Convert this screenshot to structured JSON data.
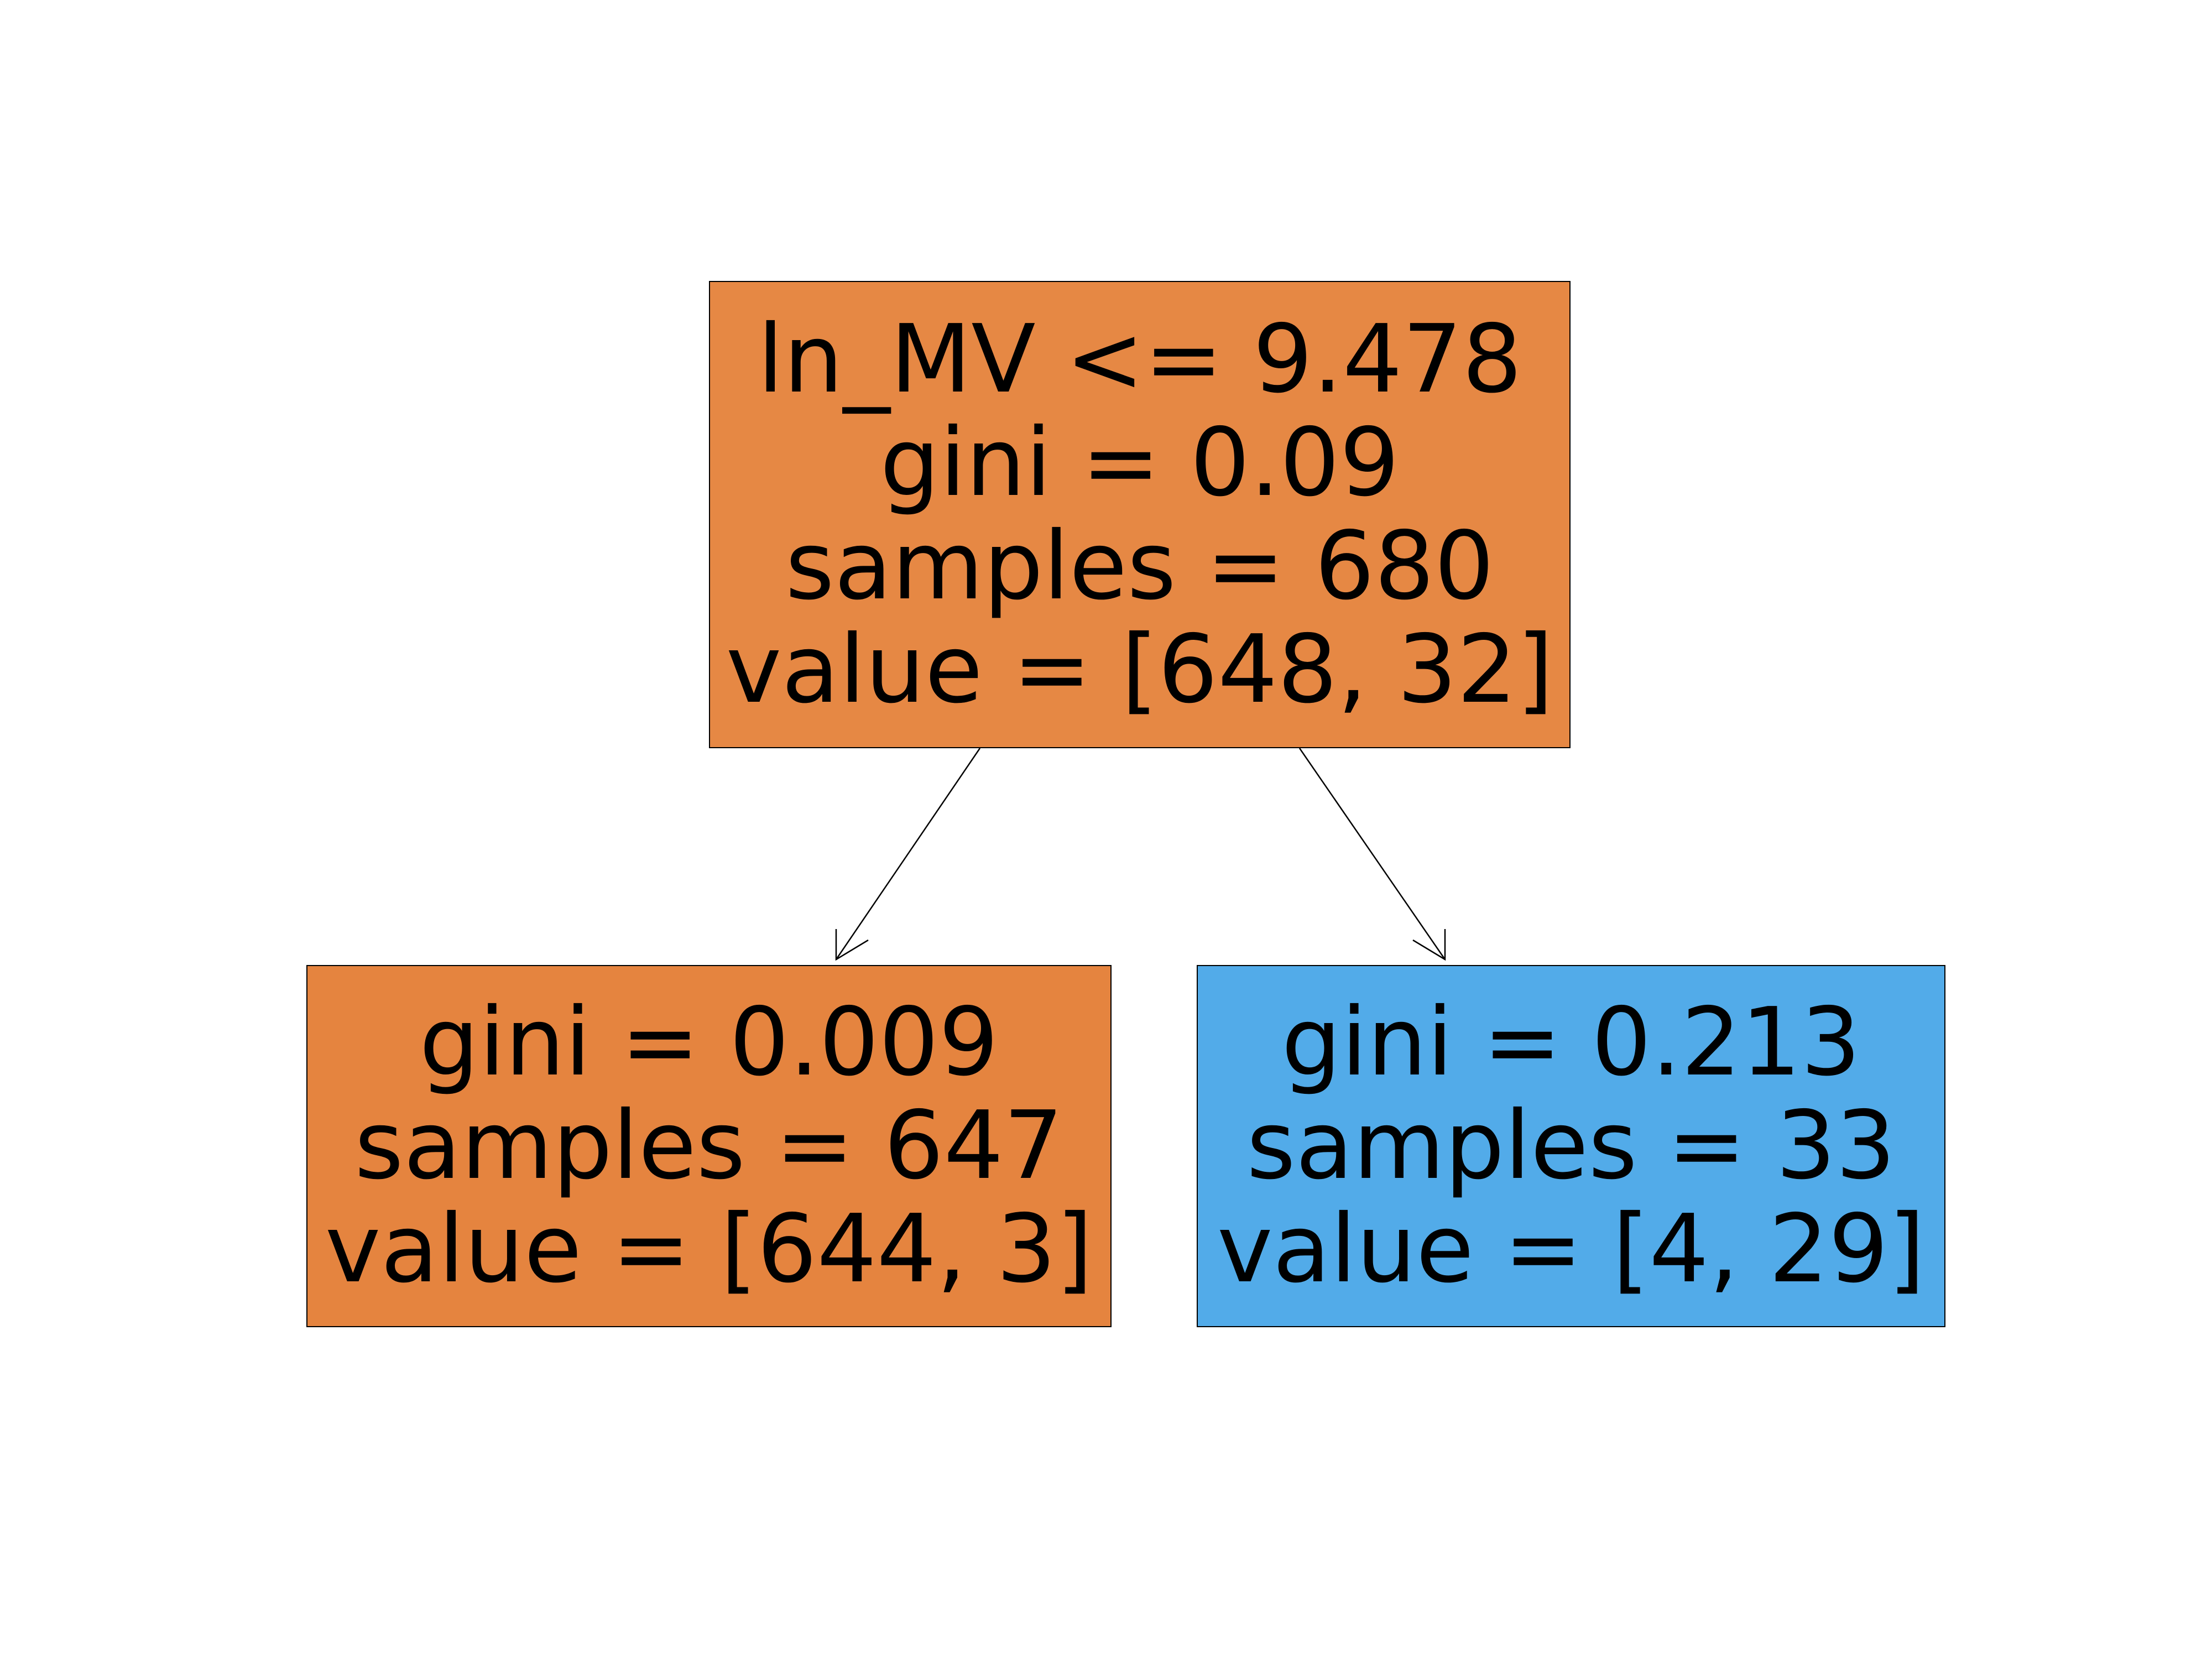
{
  "colors": {
    "background": "#ffffff",
    "class0_fill": "#e5843f",
    "root_fill": "#e68844",
    "class1_fill": "#52abe9",
    "border": "#000000",
    "text": "#000000"
  },
  "tree": {
    "root": {
      "split": "ln_MV <= 9.478",
      "gini": "gini = 0.09",
      "samples": "samples = 680",
      "value": "value = [648, 32]"
    },
    "left": {
      "gini": "gini = 0.009",
      "samples": "samples = 647",
      "value": "value = [644, 3]"
    },
    "right": {
      "gini": "gini = 0.213",
      "samples": "samples = 33",
      "value": "value = [4, 29]"
    }
  }
}
